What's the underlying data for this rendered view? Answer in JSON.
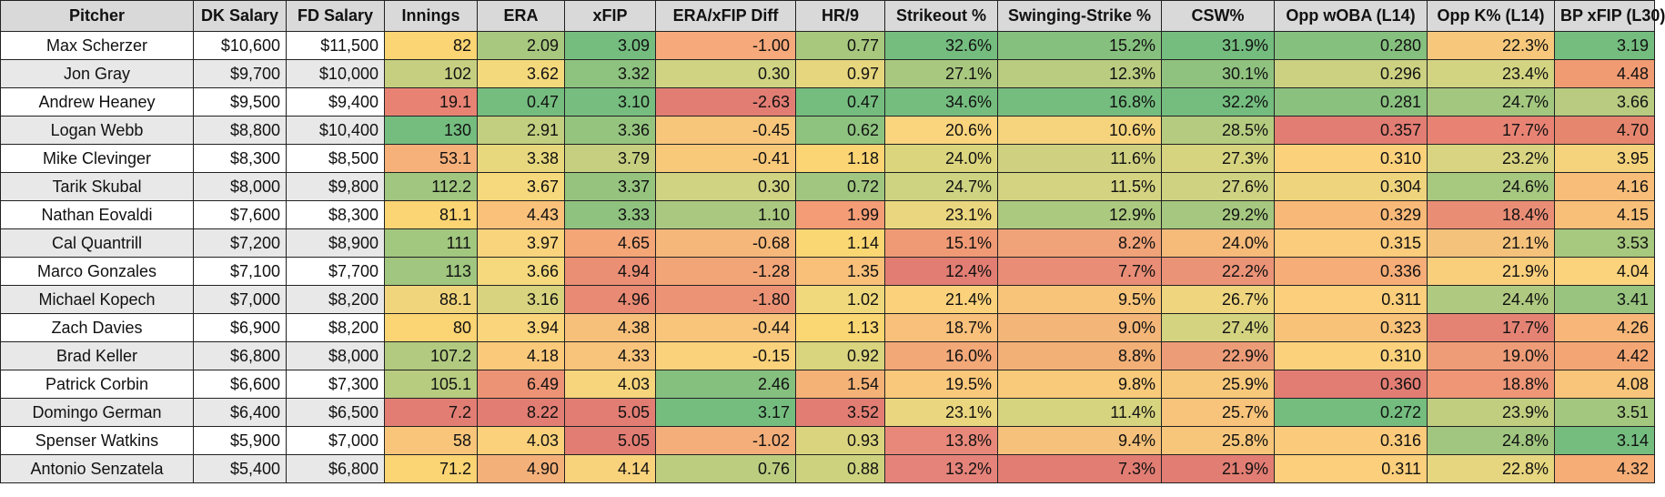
{
  "sheet": {
    "headers": [
      "Pitcher",
      "DK Salary",
      "FD Salary",
      "Innings",
      "ERA",
      "xFIP",
      "ERA/xFIP Diff",
      "HR/9",
      "Strikeout %",
      "Swinging-Strike %",
      "CSW%",
      "Opp wOBA (L14)",
      "Opp K% (L14)",
      "BP xFIP (L30)"
    ],
    "rows": [
      {
        "pitcher": "Max Scherzer",
        "dk": "$10,600",
        "fd": "$11,500",
        "innings": "82",
        "era": "2.09",
        "xfip": "3.09",
        "diff": "-1.00",
        "hr9": "0.77",
        "k": "32.6%",
        "swstr": "15.2%",
        "csw": "31.9%",
        "owoba": "0.280",
        "ok": "22.3%",
        "bp": "3.19",
        "colors": {
          "innings": "#fbd473",
          "era": "#a9c87f",
          "xfip": "#74bd7f",
          "diff": "#f6a97a",
          "hr9": "#a8c87e",
          "k": "#74bd7f",
          "swstr": "#86c07f",
          "csw": "#74bd7f",
          "owoba": "#86c07f",
          "ok": "#f7c87b",
          "bp": "#74bd7f"
        }
      },
      {
        "pitcher": "Jon Gray",
        "dk": "$9,700",
        "fd": "$10,000",
        "innings": "102",
        "era": "3.62",
        "xfip": "3.32",
        "diff": "0.30",
        "hr9": "0.97",
        "k": "27.1%",
        "swstr": "12.3%",
        "csw": "30.1%",
        "owoba": "0.296",
        "ok": "23.4%",
        "bp": "4.48",
        "colors": {
          "innings": "#c6cf80",
          "era": "#f4d97c",
          "xfip": "#8dc27f",
          "diff": "#cfd382",
          "hr9": "#e6d67e",
          "k": "#a9c87f",
          "swstr": "#b9cc80",
          "csw": "#8fc27f",
          "owoba": "#cbd181",
          "ok": "#d3d481",
          "bp": "#f19b73"
        }
      },
      {
        "pitcher": "Andrew Heaney",
        "dk": "$9,500",
        "fd": "$9,400",
        "innings": "19.1",
        "era": "0.47",
        "xfip": "3.10",
        "diff": "-2.63",
        "hr9": "0.47",
        "k": "34.6%",
        "swstr": "16.8%",
        "csw": "32.2%",
        "owoba": "0.281",
        "ok": "24.7%",
        "bp": "3.66",
        "colors": {
          "innings": "#e88374",
          "era": "#74bd7f",
          "xfip": "#76bd7f",
          "diff": "#e27d73",
          "hr9": "#74bd7f",
          "k": "#74bd7f",
          "swstr": "#74bd7f",
          "csw": "#74bd7f",
          "owoba": "#8ac17f",
          "ok": "#a3c77f",
          "bp": "#b8cb80"
        }
      },
      {
        "pitcher": "Logan Webb",
        "dk": "$8,800",
        "fd": "$10,400",
        "innings": "130",
        "era": "2.91",
        "xfip": "3.36",
        "diff": "-0.45",
        "hr9": "0.62",
        "k": "20.6%",
        "swstr": "10.6%",
        "csw": "28.5%",
        "owoba": "0.357",
        "ok": "17.7%",
        "bp": "4.70",
        "colors": {
          "innings": "#74bd7f",
          "era": "#c3cf80",
          "xfip": "#95c47f",
          "diff": "#f8c67a",
          "hr9": "#8ec37f",
          "k": "#fad57d",
          "swstr": "#f5d47d",
          "csw": "#b5cb80",
          "owoba": "#e27d73",
          "ok": "#e88374",
          "bp": "#e6866f"
        }
      },
      {
        "pitcher": "Mike Clevinger",
        "dk": "$8,300",
        "fd": "$8,500",
        "innings": "53.1",
        "era": "3.38",
        "xfip": "3.79",
        "diff": "-0.41",
        "hr9": "1.18",
        "k": "24.0%",
        "swstr": "11.6%",
        "csw": "27.3%",
        "owoba": "0.310",
        "ok": "23.2%",
        "bp": "3.95",
        "colors": {
          "innings": "#f6b07a",
          "era": "#e8d87d",
          "xfip": "#c6cf80",
          "diff": "#f9c97a",
          "hr9": "#fbd473",
          "k": "#dbd57e",
          "swstr": "#cfd181",
          "csw": "#d6d47f",
          "owoba": "#fbd27b",
          "ok": "#d8d481",
          "bp": "#f4d37c"
        }
      },
      {
        "pitcher": "Tarik Skubal",
        "dk": "$8,000",
        "fd": "$9,800",
        "innings": "112.2",
        "era": "3.67",
        "xfip": "3.37",
        "diff": "0.30",
        "hr9": "0.72",
        "k": "24.7%",
        "swstr": "11.5%",
        "csw": "27.6%",
        "owoba": "0.304",
        "ok": "24.6%",
        "bp": "4.16",
        "colors": {
          "innings": "#a0c67f",
          "era": "#f6d97c",
          "xfip": "#96c47f",
          "diff": "#cfd382",
          "hr9": "#a0c67f",
          "k": "#cdd381",
          "swstr": "#d3d381",
          "csw": "#cfd281",
          "owoba": "#eed47d",
          "ok": "#a7c87f",
          "bp": "#f8be79"
        }
      },
      {
        "pitcher": "Nathan Eovaldi",
        "dk": "$7,600",
        "fd": "$8,300",
        "innings": "81.1",
        "era": "4.43",
        "xfip": "3.33",
        "diff": "1.10",
        "hr9": "1.99",
        "k": "23.1%",
        "swstr": "12.9%",
        "csw": "29.2%",
        "owoba": "0.329",
        "ok": "18.4%",
        "bp": "4.15",
        "colors": {
          "innings": "#fbd473",
          "era": "#f9c17a",
          "xfip": "#8fc27f",
          "diff": "#aac880",
          "hr9": "#f39c75",
          "k": "#ead67e",
          "swstr": "#acc980",
          "csw": "#a5c77f",
          "owoba": "#f8b978",
          "ok": "#ea8d75",
          "bp": "#f8bf79"
        }
      },
      {
        "pitcher": "Cal Quantrill",
        "dk": "$7,200",
        "fd": "$8,900",
        "innings": "111",
        "era": "3.97",
        "xfip": "4.65",
        "diff": "-0.68",
        "hr9": "1.14",
        "k": "15.1%",
        "swstr": "8.2%",
        "csw": "24.0%",
        "owoba": "0.315",
        "ok": "21.1%",
        "bp": "3.53",
        "colors": {
          "innings": "#a2c77f",
          "era": "#fad47c",
          "xfip": "#f4a677",
          "diff": "#f6b87a",
          "hr9": "#fbd773",
          "k": "#f09a75",
          "swstr": "#f0a278",
          "csw": "#f6ba79",
          "owoba": "#fbcc7b",
          "ok": "#f5c27b",
          "bp": "#a7c87f"
        }
      },
      {
        "pitcher": "Marco Gonzales",
        "dk": "$7,100",
        "fd": "$7,700",
        "innings": "113",
        "era": "3.66",
        "xfip": "4.94",
        "diff": "-1.28",
        "hr9": "1.35",
        "k": "12.4%",
        "swstr": "7.7%",
        "csw": "22.2%",
        "owoba": "0.336",
        "ok": "21.9%",
        "bp": "4.04",
        "colors": {
          "innings": "#a0c67f",
          "era": "#f5d97c",
          "xfip": "#ea8e74",
          "diff": "#f2a678",
          "hr9": "#f8c079",
          "k": "#e27d73",
          "swstr": "#e98d76",
          "csw": "#eb9377",
          "owoba": "#f6ad77",
          "ok": "#f9cf7c",
          "bp": "#fad37c"
        }
      },
      {
        "pitcher": "Michael Kopech",
        "dk": "$7,000",
        "fd": "$8,200",
        "innings": "88.1",
        "era": "3.16",
        "xfip": "4.96",
        "diff": "-1.80",
        "hr9": "1.02",
        "k": "21.4%",
        "swstr": "9.5%",
        "csw": "26.7%",
        "owoba": "0.311",
        "ok": "24.4%",
        "bp": "3.41",
        "colors": {
          "innings": "#f1d57c",
          "era": "#d7d37f",
          "xfip": "#e88a74",
          "diff": "#ec9376",
          "hr9": "#f0d97c",
          "k": "#fbd27b",
          "swstr": "#f7c47a",
          "csw": "#eed57e",
          "owoba": "#fbcf7b",
          "ok": "#b0c980",
          "bp": "#98c47f"
        }
      },
      {
        "pitcher": "Zach Davies",
        "dk": "$6,900",
        "fd": "$8,200",
        "innings": "80",
        "era": "3.94",
        "xfip": "4.38",
        "diff": "-0.44",
        "hr9": "1.13",
        "k": "18.7%",
        "swstr": "9.0%",
        "csw": "27.4%",
        "owoba": "0.323",
        "ok": "17.7%",
        "bp": "4.26",
        "colors": {
          "innings": "#fbd473",
          "era": "#fbd57c",
          "xfip": "#f7c07a",
          "diff": "#f8c57a",
          "hr9": "#fbd773",
          "k": "#f8c07a",
          "swstr": "#f4b678",
          "csw": "#d4d380",
          "owoba": "#f9c279",
          "ok": "#e48374",
          "bp": "#f8b778"
        }
      },
      {
        "pitcher": "Brad Keller",
        "dk": "$6,800",
        "fd": "$8,000",
        "innings": "107.2",
        "era": "4.18",
        "xfip": "4.33",
        "diff": "-0.15",
        "hr9": "0.92",
        "k": "16.0%",
        "swstr": "8.8%",
        "csw": "22.9%",
        "owoba": "0.310",
        "ok": "19.0%",
        "bp": "4.42",
        "colors": {
          "innings": "#b1ca80",
          "era": "#fac97a",
          "xfip": "#f8c37a",
          "diff": "#fad27b",
          "hr9": "#d9d47e",
          "k": "#f3a878",
          "swstr": "#f2b077",
          "csw": "#ed9c78",
          "owoba": "#fbd27b",
          "ok": "#ee9c77",
          "bp": "#f3a674"
        }
      },
      {
        "pitcher": "Patrick Corbin",
        "dk": "$6,600",
        "fd": "$7,300",
        "innings": "105.1",
        "era": "6.49",
        "xfip": "4.03",
        "diff": "2.46",
        "hr9": "1.54",
        "k": "19.5%",
        "swstr": "9.8%",
        "csw": "25.9%",
        "owoba": "0.360",
        "ok": "18.8%",
        "bp": "4.08",
        "colors": {
          "innings": "#b8cc80",
          "era": "#ec9375",
          "xfip": "#f7d57c",
          "diff": "#85c07f",
          "hr9": "#f5b277",
          "k": "#f9c87b",
          "swstr": "#f8ca7a",
          "csw": "#f8c87a",
          "owoba": "#e27d73",
          "ok": "#ee9676",
          "bp": "#f8c57a"
        }
      },
      {
        "pitcher": "Domingo German",
        "dk": "$6,400",
        "fd": "$6,500",
        "innings": "7.2",
        "era": "8.22",
        "xfip": "5.05",
        "diff": "3.17",
        "hr9": "3.52",
        "k": "23.1%",
        "swstr": "11.4%",
        "csw": "25.7%",
        "owoba": "0.272",
        "ok": "23.9%",
        "bp": "3.51",
        "colors": {
          "innings": "#e27d73",
          "era": "#e27d73",
          "xfip": "#e27d73",
          "diff": "#74bd7f",
          "hr9": "#e27d73",
          "k": "#ead67e",
          "swstr": "#d7d47f",
          "csw": "#f8c37a",
          "owoba": "#74bd7f",
          "ok": "#c1ce80",
          "bp": "#a4c77f"
        }
      },
      {
        "pitcher": "Spenser Watkins",
        "dk": "$5,900",
        "fd": "$7,000",
        "innings": "58",
        "era": "4.03",
        "xfip": "5.05",
        "diff": "-1.02",
        "hr9": "0.93",
        "k": "13.8%",
        "swstr": "9.4%",
        "csw": "25.8%",
        "owoba": "0.316",
        "ok": "24.8%",
        "bp": "3.14",
        "colors": {
          "innings": "#f8c57a",
          "era": "#fbd17b",
          "xfip": "#e27d73",
          "diff": "#f4ae79",
          "hr9": "#dbd47e",
          "k": "#e8887a",
          "swstr": "#f6c17a",
          "csw": "#f8c67a",
          "owoba": "#fbcb7b",
          "ok": "#a0c67f",
          "bp": "#74bd7f"
        }
      },
      {
        "pitcher": "Antonio Senzatela",
        "dk": "$5,400",
        "fd": "$6,800",
        "innings": "71.2",
        "era": "4.90",
        "xfip": "4.14",
        "diff": "0.76",
        "hr9": "0.88",
        "k": "13.2%",
        "swstr": "7.3%",
        "csw": "21.9%",
        "owoba": "0.311",
        "ok": "22.8%",
        "bp": "4.32",
        "colors": {
          "innings": "#fbd473",
          "era": "#f4b079",
          "xfip": "#f9d27c",
          "diff": "#bccd80",
          "hr9": "#ccd27e",
          "k": "#e5837a",
          "swstr": "#e27d73",
          "csw": "#e27d73",
          "owoba": "#fbcf7b",
          "ok": "#e6d67f",
          "bp": "#f6ad76"
        }
      }
    ]
  }
}
